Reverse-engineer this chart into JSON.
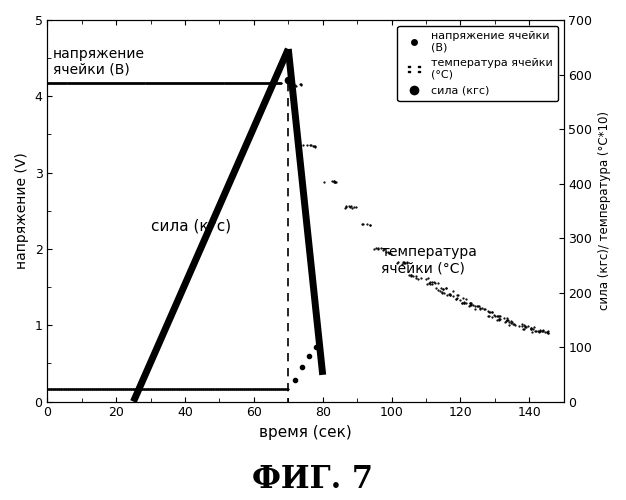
{
  "title": "ФИГ. 7",
  "xlabel": "время (сек)",
  "ylabel_left": "напряжение (V)",
  "ylabel_right": "сила (кгс)/ температура (°C*10)",
  "xlim": [
    0,
    150
  ],
  "ylim_left": [
    0,
    5
  ],
  "ylim_right": [
    0,
    700
  ],
  "xticks": [
    0,
    20,
    40,
    60,
    80,
    100,
    120,
    140
  ],
  "yticks_left": [
    0,
    1,
    2,
    3,
    4,
    5
  ],
  "yticks_right": [
    0,
    100,
    200,
    300,
    400,
    500,
    600,
    700
  ],
  "annotation_voltage": "напряжение\nячейки (В)",
  "annotation_force": "сила (кгс)",
  "annotation_temp": "температура\nячейки (°C)",
  "bg_color": "#ffffff",
  "voltage_y": 4.18,
  "voltage_x_end": 68,
  "force_start_x": 25,
  "force_peak_x": 70,
  "force_peak_y": 4.62,
  "force_end_x": 80,
  "force_end_y": 0.35,
  "vdrop_x": 70,
  "bottom_y": 0.17,
  "temp_clusters": [
    [
      72,
      4.15
    ],
    [
      76,
      3.35
    ],
    [
      82,
      2.88
    ],
    [
      88,
      2.55
    ],
    [
      92,
      2.32
    ],
    [
      96,
      2.0
    ],
    [
      100,
      1.95
    ],
    [
      103,
      1.82
    ],
    [
      106,
      1.65
    ],
    [
      109,
      1.62
    ],
    [
      112,
      1.55
    ],
    [
      114,
      1.48
    ],
    [
      116,
      1.44
    ],
    [
      118,
      1.4
    ],
    [
      120,
      1.35
    ],
    [
      122,
      1.3
    ],
    [
      124,
      1.26
    ],
    [
      126,
      1.22
    ],
    [
      128,
      1.18
    ],
    [
      130,
      1.12
    ],
    [
      132,
      1.08
    ],
    [
      134,
      1.05
    ],
    [
      136,
      1.02
    ],
    [
      138,
      0.99
    ],
    [
      140,
      0.96
    ],
    [
      142,
      0.93
    ],
    [
      144,
      0.91
    ]
  ],
  "force_dots": [
    [
      72,
      0.28
    ],
    [
      74,
      0.45
    ],
    [
      76,
      0.6
    ],
    [
      78,
      0.72
    ]
  ],
  "legend_v_label": "напряжение ячейки\n(В)",
  "legend_t_label": "температура ячейки\n(°C)",
  "legend_f_label": "сила (кгс)"
}
